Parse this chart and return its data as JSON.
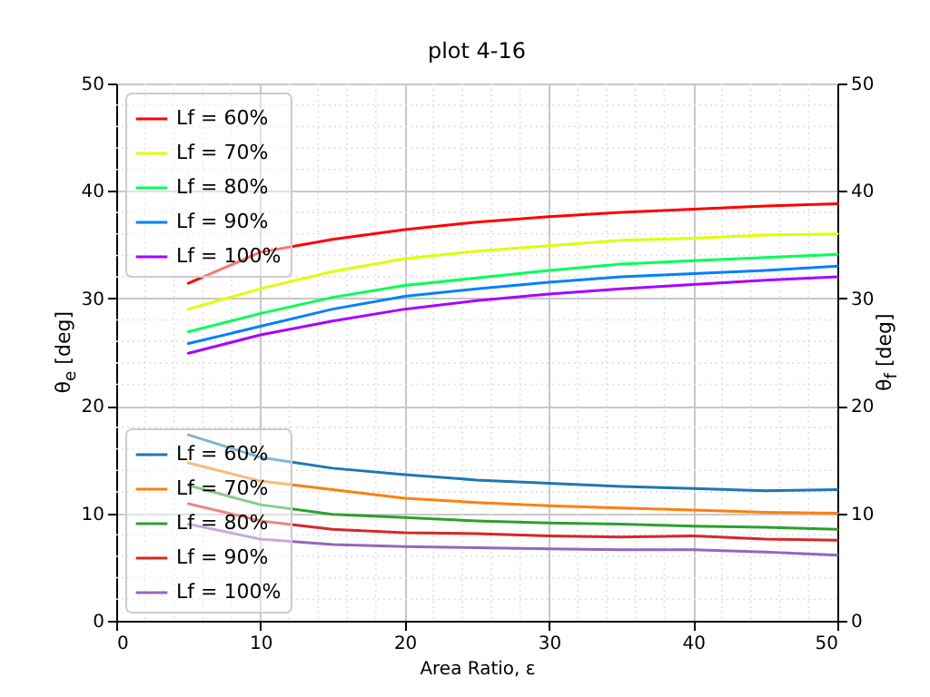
{
  "chart_data": {
    "type": "line",
    "title": "plot 4-16",
    "xlabel": "Area Ratio, ε",
    "ylabel": "θ$_{e}$ [deg]",
    "y2label": "θ$_{f}$ [deg]",
    "x": [
      5,
      10,
      15,
      20,
      25,
      30,
      35,
      40,
      45,
      50
    ],
    "xlim": [
      0,
      50
    ],
    "xticks": [
      0,
      10,
      20,
      30,
      40,
      50
    ],
    "ylim": [
      0,
      50
    ],
    "yticks": [
      0,
      10,
      20,
      30,
      40,
      50
    ],
    "y2lim": [
      0,
      50
    ],
    "y2ticks": [
      0,
      10,
      20,
      30,
      40,
      50
    ],
    "grid": true,
    "legend": "left",
    "line_style": "solid",
    "series": [
      {
        "name": "Lf = 60%",
        "color": "#ff0000",
        "axis": "y2",
        "values": [
          31.4,
          34.3,
          35.5,
          36.4,
          37.1,
          37.6,
          38.0,
          38.3,
          38.6,
          38.8
        ]
      },
      {
        "name": "Lf = 70%",
        "color": "#ddff00",
        "axis": "y2",
        "values": [
          29.0,
          30.9,
          32.5,
          33.7,
          34.4,
          34.9,
          35.4,
          35.6,
          35.9,
          36.0
        ]
      },
      {
        "name": "Lf = 80%",
        "color": "#00ff55",
        "axis": "y2",
        "values": [
          26.9,
          28.6,
          30.1,
          31.2,
          31.9,
          32.6,
          33.2,
          33.5,
          33.8,
          34.1
        ]
      },
      {
        "name": "Lf = 90%",
        "color": "#0080ff",
        "axis": "y2",
        "values": [
          25.8,
          27.4,
          29.0,
          30.2,
          30.9,
          31.5,
          32.0,
          32.3,
          32.6,
          33.0
        ]
      },
      {
        "name": "Lf = 100%",
        "color": "#aa00ff",
        "axis": "y2",
        "values": [
          24.9,
          26.6,
          27.9,
          29.0,
          29.8,
          30.4,
          30.9,
          31.3,
          31.7,
          32.0
        ]
      },
      {
        "name": "Lf = 60%",
        "color": "#1f77b4",
        "axis": "y",
        "values": [
          17.3,
          15.2,
          14.2,
          13.6,
          13.1,
          12.8,
          12.5,
          12.3,
          12.1,
          12.2
        ]
      },
      {
        "name": "Lf = 70%",
        "color": "#ff7f0e",
        "axis": "y",
        "values": [
          14.7,
          13.0,
          12.2,
          11.4,
          11.0,
          10.7,
          10.5,
          10.3,
          10.1,
          10.0
        ]
      },
      {
        "name": "Lf = 80%",
        "color": "#2ca02c",
        "axis": "y",
        "values": [
          12.6,
          10.8,
          9.9,
          9.6,
          9.3,
          9.1,
          9.0,
          8.8,
          8.7,
          8.5
        ]
      },
      {
        "name": "Lf = 90%",
        "color": "#d62728",
        "axis": "y",
        "values": [
          10.9,
          9.3,
          8.5,
          8.2,
          8.1,
          7.9,
          7.8,
          7.9,
          7.6,
          7.5
        ]
      },
      {
        "name": "Lf = 100%",
        "color": "#9467bd",
        "axis": "y",
        "values": [
          9.0,
          7.6,
          7.1,
          6.9,
          6.8,
          6.7,
          6.6,
          6.6,
          6.4,
          6.1
        ]
      }
    ]
  }
}
